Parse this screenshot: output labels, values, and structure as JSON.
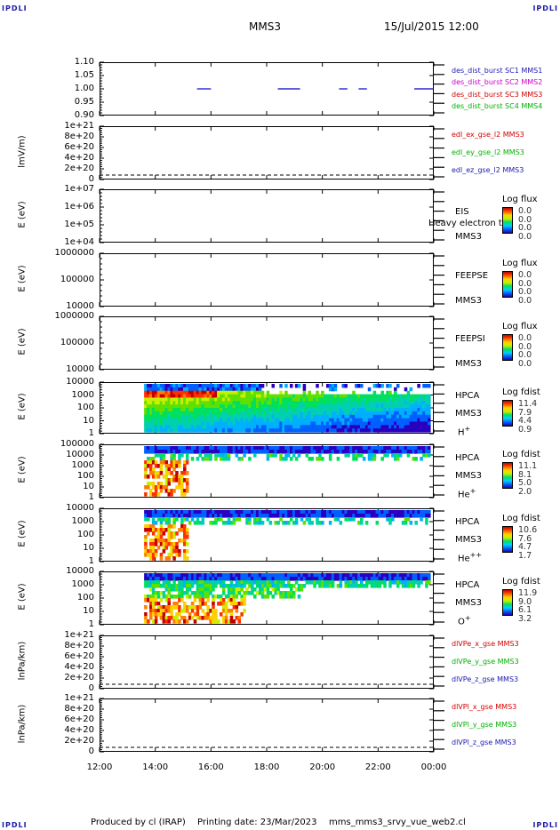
{
  "corners": {
    "tl": "IPDLI",
    "tr": "IPDLI",
    "bl": "IPDLI",
    "br": "IPDLI"
  },
  "header": {
    "spacecraft": "MMS3",
    "datetime": "15/Jul/2015 12:00"
  },
  "footer": {
    "produced_by": "Produced by cl (IRAP)",
    "printing_date": "Printing date: 23/Mar/2023",
    "filename": "mms_mms3_srvy_vue_web2.cl"
  },
  "colors": {
    "blue": "#0000c8",
    "magenta": "#c800c8",
    "red": "#d00000",
    "green": "#00b000",
    "axis": "#000000"
  },
  "panels": [
    {
      "id": "p1",
      "top": 70,
      "height": 60,
      "ylabel": "",
      "ticks": [
        "1.10",
        "1.05",
        "1.00",
        "0.95",
        "0.90"
      ],
      "legend": [
        {
          "text": "des_dist_burst SC1 MMS1",
          "color": "#1a1ab0"
        },
        {
          "text": "des_dist_burst SC2 MMS2",
          "color": "#c800c8"
        },
        {
          "text": "des_dist_burst SC3 MMS3",
          "color": "#d00000"
        },
        {
          "text": "des_dist_burst SC4 MMS4",
          "color": "#00b000"
        }
      ]
    },
    {
      "id": "p2",
      "top": 142,
      "height": 60,
      "ylabel": "lmV/m)",
      "ticks": [
        "1e+21",
        "8e+20",
        "6e+20",
        "4e+20",
        "2e+20",
        "0"
      ],
      "legend": [
        {
          "text": "edl_ex_gse_l2 MMS3",
          "color": "#d00000"
        },
        {
          "text": "edl_ey_gse_l2 MMS3",
          "color": "#00b000"
        },
        {
          "text": "edl_ez_gse_l2 MMS3",
          "color": "#1a1ab0"
        }
      ]
    },
    {
      "id": "p3",
      "top": 213,
      "height": 60,
      "ylabel": "E (eV)",
      "ticks": [
        "1e+07",
        "1e+06",
        "1e+05",
        "1e+04"
      ],
      "rlabels": [
        "EIS",
        "MMS3"
      ],
      "overlay": "Heavy electron to",
      "cb": {
        "title": "Log flux",
        "vals": [
          "0.0",
          "0.0",
          "0.0",
          "0.0"
        ]
      }
    },
    {
      "id": "p4",
      "top": 285,
      "height": 60,
      "ylabel": "E (eV)",
      "ticks": [
        "1000000",
        "100000",
        "10000"
      ],
      "rlabels": [
        "FEEPSE",
        "MMS3"
      ],
      "cb": {
        "title": "Log flux",
        "vals": [
          "0.0",
          "0.0",
          "0.0",
          "0.0"
        ]
      }
    },
    {
      "id": "p5",
      "top": 356,
      "height": 60,
      "ylabel": "E (eV)",
      "ticks": [
        "1000000",
        "100000",
        "10000"
      ],
      "rlabels": [
        "FEEPSI",
        "MMS3"
      ],
      "cb": {
        "title": "Log flux",
        "vals": [
          "0.0",
          "0.0",
          "0.0",
          "0.0"
        ]
      }
    },
    {
      "id": "p6",
      "top": 430,
      "height": 58,
      "ylabel": "E (eV)",
      "ticks": [
        "10000",
        "1000",
        "100",
        "10",
        "1"
      ],
      "rlabels": [
        "HPCA",
        "MMS3"
      ],
      "species": "H",
      "sup": "+",
      "cb": {
        "title": "Log fdist",
        "vals": [
          "11.4",
          "7.9",
          "4.4",
          "0.9"
        ]
      }
    },
    {
      "id": "p7",
      "top": 500,
      "height": 60,
      "ylabel": "E (eV)",
      "ticks": [
        "100000",
        "10000",
        "1000",
        "100",
        "10",
        "1"
      ],
      "rlabels": [
        "HPCA",
        "MMS3"
      ],
      "species": "He",
      "sup": "+",
      "cb": {
        "title": "Log fdist",
        "vals": [
          "11.1",
          "8.1",
          "5.0",
          "2.0"
        ]
      }
    },
    {
      "id": "p8",
      "top": 572,
      "height": 60,
      "ylabel": "E (eV)",
      "ticks": [
        "10000",
        "1000",
        "100",
        "10",
        "1"
      ],
      "rlabels": [
        "HPCA",
        "MMS3"
      ],
      "species": "He",
      "sup": "++",
      "cb": {
        "title": "Log fdist",
        "vals": [
          "10.6",
          "7.6",
          "4.7",
          "1.7"
        ]
      }
    },
    {
      "id": "p9",
      "top": 643,
      "height": 60,
      "ylabel": "E (eV)",
      "ticks": [
        "10000",
        "1000",
        "100",
        "10",
        "1"
      ],
      "rlabels": [
        "HPCA",
        "MMS3"
      ],
      "species": "O",
      "sup": "+",
      "cb": {
        "title": "Log fdist",
        "vals": [
          "11.9",
          "9.0",
          "6.1",
          "3.2"
        ]
      }
    },
    {
      "id": "p10",
      "top": 715,
      "height": 60,
      "ylabel": "lnPa/km)",
      "ticks": [
        "1e+21",
        "8e+20",
        "6e+20",
        "4e+20",
        "2e+20",
        "0"
      ],
      "legend": [
        {
          "text": "dlVPe_x_gse MMS3",
          "color": "#d00000"
        },
        {
          "text": "dlVPe_y_gse MMS3",
          "color": "#00b000"
        },
        {
          "text": "dlVPe_z_gse MMS3",
          "color": "#1a1ab0"
        }
      ]
    },
    {
      "id": "p11",
      "top": 786,
      "height": 60,
      "ylabel": "lnPa/km)",
      "ticks": [
        "1e+21",
        "8e+20",
        "6e+20",
        "4e+20",
        "2e+20",
        "0"
      ],
      "legend": [
        {
          "text": "dlVPl_x_gse MMS3",
          "color": "#d00000"
        },
        {
          "text": "dlVPl_y_gse MMS3",
          "color": "#00b000"
        },
        {
          "text": "dlVPl_z_gse MMS3",
          "color": "#1a1ab0"
        }
      ]
    }
  ],
  "chart_data": {
    "type": "heatmap",
    "x_ticks": [
      "12:00",
      "14:00",
      "16:00",
      "18:00",
      "20:00",
      "22:00",
      "00:00"
    ],
    "x_range_hours": [
      12,
      24
    ],
    "burst_intervals_hours": [
      [
        15.5,
        16.0
      ],
      [
        18.4,
        19.2
      ],
      [
        20.6,
        20.9
      ],
      [
        21.3,
        21.6
      ],
      [
        23.3,
        24.0
      ]
    ],
    "hpca_data_start_hour": 13.6,
    "y_scale": "log"
  }
}
